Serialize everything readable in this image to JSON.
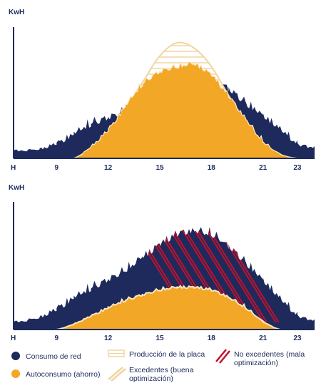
{
  "colors": {
    "navy": "#1d2a5b",
    "orange": "#f2a726",
    "cream": "#f0d5a1",
    "red": "#c0112f"
  },
  "chart_data": [
    {
      "type": "area",
      "ylabel": "KwH",
      "x_origin_label": "H",
      "ticks": [
        9,
        12,
        15,
        18,
        21,
        23
      ],
      "xlim": [
        6.5,
        24
      ],
      "series": [
        {
          "name": "Consumo de red",
          "x": [
            6.5,
            8,
            9,
            10,
            11,
            12,
            13,
            14,
            15,
            16,
            17,
            18,
            19,
            20,
            21,
            22,
            23,
            24
          ],
          "values": [
            0.05,
            0.06,
            0.1,
            0.16,
            0.24,
            0.28,
            0.34,
            0.42,
            0.52,
            0.6,
            0.64,
            0.6,
            0.5,
            0.4,
            0.3,
            0.2,
            0.1,
            0.07
          ]
        },
        {
          "name": "Producción de la placa",
          "x": [
            10,
            11,
            12,
            13,
            14,
            15,
            16,
            17,
            18,
            19,
            20,
            21,
            22,
            23
          ],
          "values": [
            0.0,
            0.08,
            0.2,
            0.38,
            0.58,
            0.78,
            0.88,
            0.84,
            0.7,
            0.48,
            0.28,
            0.12,
            0.03,
            0.0
          ]
        },
        {
          "name": "Autoconsumo (ahorro)",
          "x": [
            10,
            11,
            12,
            13,
            14,
            15,
            16,
            17,
            18,
            19,
            20,
            21,
            22,
            23
          ],
          "values": [
            0.0,
            0.08,
            0.2,
            0.38,
            0.55,
            0.64,
            0.68,
            0.7,
            0.62,
            0.46,
            0.28,
            0.12,
            0.03,
            0.0
          ]
        }
      ]
    },
    {
      "type": "area",
      "ylabel": "KwH",
      "x_origin_label": "H",
      "ticks": [
        9,
        12,
        15,
        18,
        21,
        23
      ],
      "xlim": [
        6.5,
        24
      ],
      "series": [
        {
          "name": "Consumo de red",
          "x": [
            6.5,
            8,
            9,
            10,
            11,
            12,
            13,
            14,
            15,
            16,
            17,
            18,
            19,
            20,
            21,
            22,
            23,
            24
          ],
          "values": [
            0.05,
            0.08,
            0.14,
            0.22,
            0.3,
            0.36,
            0.44,
            0.54,
            0.64,
            0.72,
            0.74,
            0.72,
            0.62,
            0.5,
            0.36,
            0.22,
            0.1,
            0.06
          ]
        },
        {
          "name": "Autoconsumo (ahorro)",
          "x": [
            9,
            10,
            11,
            12,
            13,
            14,
            15,
            16,
            17,
            18,
            19,
            20,
            21,
            22
          ],
          "values": [
            0.0,
            0.04,
            0.1,
            0.16,
            0.22,
            0.26,
            0.3,
            0.32,
            0.32,
            0.3,
            0.24,
            0.16,
            0.06,
            0.0
          ]
        }
      ]
    }
  ],
  "legend": [
    {
      "label": "Consumo de red",
      "kind": "dot-navy"
    },
    {
      "label": "Producción de la placa",
      "kind": "hatch-box"
    },
    {
      "label": "No excedentes (mala optimización)",
      "kind": "red-lines"
    },
    {
      "label": "Autoconsumo (ahorro)",
      "kind": "dot-orange"
    },
    {
      "label": "Excedentes (buena optimización)",
      "kind": "cream-lines"
    }
  ]
}
